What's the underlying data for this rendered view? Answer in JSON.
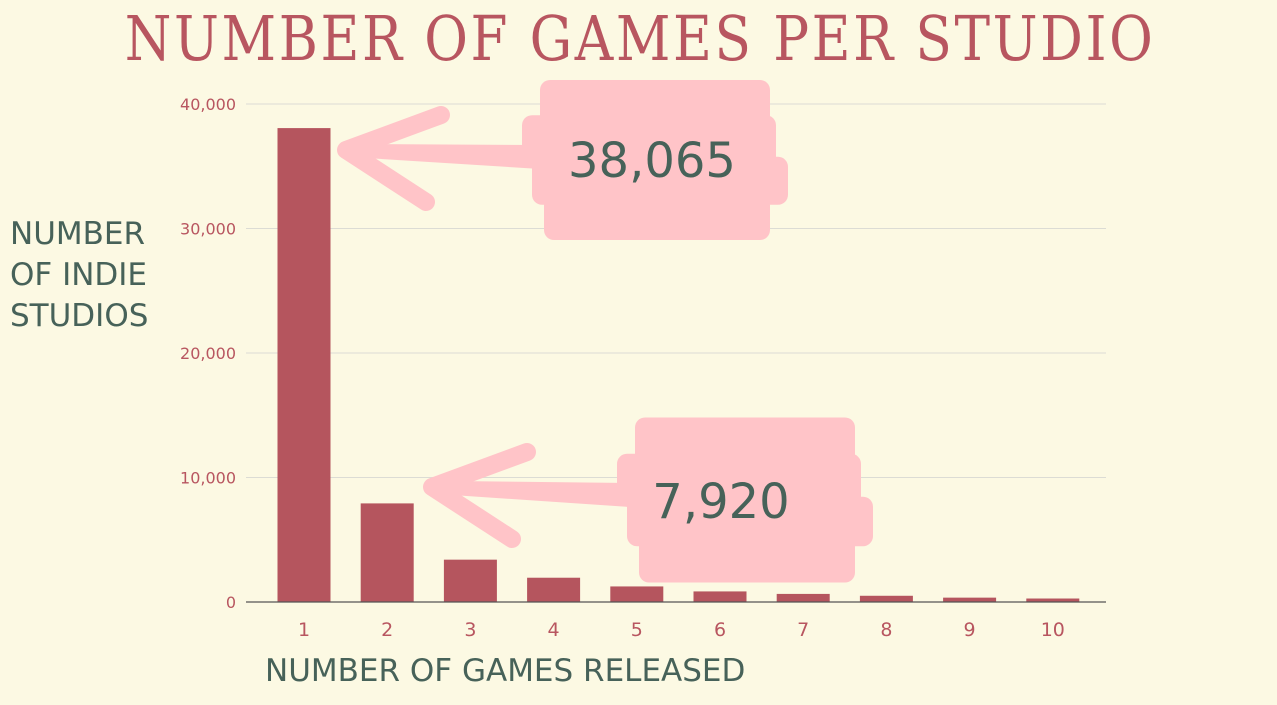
{
  "chart_data": {
    "type": "bar",
    "title": "NUMBER OF GAMES PER STUDIO",
    "xlabel": "NUMBER OF GAMES RELEASED",
    "ylabel_lines": [
      "NUMBER",
      "OF INDIE",
      "STUDIOS"
    ],
    "categories": [
      "1",
      "2",
      "3",
      "4",
      "5",
      "6",
      "7",
      "8",
      "9",
      "10"
    ],
    "values": [
      38065,
      7920,
      3400,
      1950,
      1250,
      850,
      650,
      500,
      350,
      280
    ],
    "ylim": [
      0,
      40000
    ],
    "yticks": [
      0,
      10000,
      20000,
      30000,
      40000
    ],
    "ytick_labels": [
      "0",
      "10,000",
      "20,000",
      "30,000",
      "40,000"
    ],
    "grid": true,
    "annotations": [
      {
        "text": "38,065",
        "category": "1"
      },
      {
        "text": "7,920",
        "category": "2"
      }
    ]
  },
  "colors": {
    "background": "#fcf9e3",
    "bar": "#b5555e",
    "title": "#b85660",
    "axis_label": "#476259",
    "tick_label": "#b85660",
    "annotation_bg": "#ffc4c8",
    "annotation_text": "#476259",
    "grid": "#dcdcd4"
  }
}
